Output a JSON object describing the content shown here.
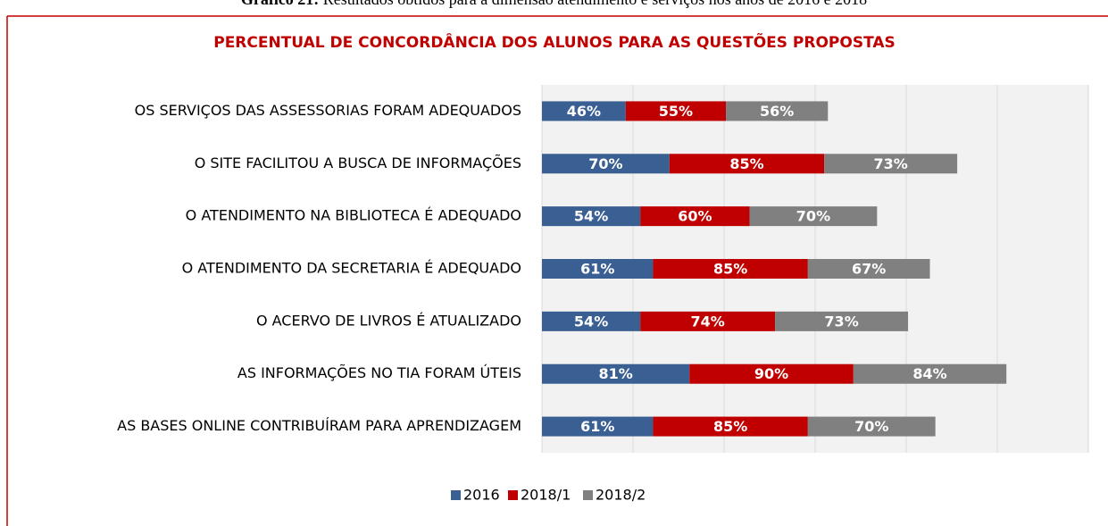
{
  "caption": {
    "label": "Gráfico 21:",
    "text": "Resultados obtidos para a dimensão atendimento e serviços nos anos de 2016 e 2018"
  },
  "chart_data": {
    "type": "stacked-barh",
    "title": "PERCENTUAL DE CONCORDÂNCIA DOS ALUNOS PARA AS QUESTÕES PROPOSTAS",
    "categories": [
      "OS SERVIÇOS DAS ASSESSORIAS FORAM ADEQUADOS",
      "O SITE FACILITOU A BUSCA DE INFORMAÇÕES",
      "O ATENDIMENTO NA BIBLIOTECA É ADEQUADO",
      "O ATENDIMENTO DA SECRETARIA É ADEQUADO",
      "O ACERVO DE LIVROS É ATUALIZADO",
      "AS INFORMAÇÕES NO TIA FORAM ÚTEIS",
      "AS BASES ONLINE CONTRIBUÍRAM PARA APRENDIZAGEM"
    ],
    "series": [
      {
        "name": "2016",
        "color": "#3a5f93",
        "values": [
          46,
          70,
          54,
          61,
          54,
          81,
          61
        ],
        "value_labels": [
          "46%",
          "70%",
          "54%",
          "61%",
          "54%",
          "81%",
          "61%"
        ]
      },
      {
        "name": "2018/1",
        "color": "#c00000",
        "values": [
          55,
          85,
          60,
          85,
          74,
          90,
          85
        ],
        "value_labels": [
          "55%",
          "85%",
          "60%",
          "85%",
          "74%",
          "90%",
          "85%"
        ]
      },
      {
        "name": "2018/2",
        "color": "#808080",
        "values": [
          56,
          73,
          70,
          67,
          73,
          84,
          70
        ],
        "value_labels": [
          "56%",
          "73%",
          "70%",
          "67%",
          "73%",
          "84%",
          "70%"
        ]
      }
    ],
    "xlim": [
      0,
      300
    ],
    "xticks": [
      0,
      50,
      100,
      150,
      200,
      250,
      300
    ],
    "grid": true,
    "legend": "bottom"
  }
}
